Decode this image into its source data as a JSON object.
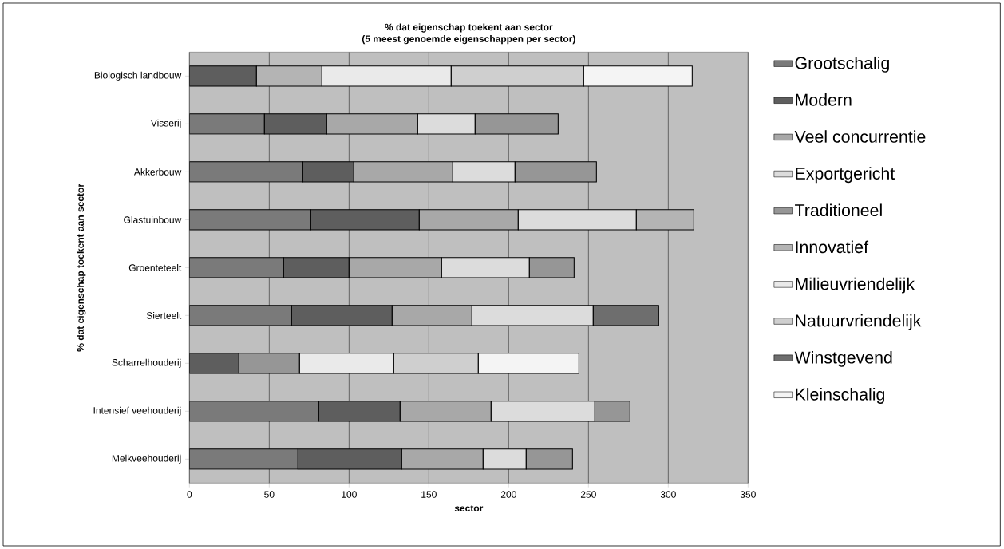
{
  "chart_data": {
    "type": "bar",
    "orientation": "horizontal",
    "stacked": true,
    "title": "% dat eigenschap toekent aan sector",
    "subtitle": "(5 meest genoemde eigenschappen per sector)",
    "xlabel": "sector",
    "ylabel": "% dat eigenschap toekent aan sector",
    "categories": [
      "Biologisch landbouw",
      "Visserij",
      "Akkerbouw",
      "Glastuinbouw",
      "Groenteteelt",
      "Sierteelt",
      "Scharrelhouderij",
      "Intensief veehouderij",
      "Melkveehouderij"
    ],
    "series": [
      {
        "name": "Grootschalig",
        "color": "#7a7a7a",
        "values": [
          null,
          47,
          71,
          76,
          59,
          64,
          null,
          81,
          68
        ]
      },
      {
        "name": "Modern",
        "color": "#5e5e5e",
        "values": [
          42,
          39,
          32,
          68,
          41,
          63,
          31,
          51,
          65
        ]
      },
      {
        "name": "Veel concurrentie",
        "color": "#a8a8a8",
        "values": [
          null,
          57,
          62,
          62,
          58,
          50,
          null,
          57,
          51
        ]
      },
      {
        "name": "Exportgericht",
        "color": "#dcdcdc",
        "values": [
          null,
          36,
          39,
          74,
          55,
          76,
          null,
          65,
          27
        ]
      },
      {
        "name": "Traditioneel",
        "color": "#969696",
        "values": [
          null,
          52,
          51,
          null,
          28,
          null,
          38,
          22,
          29
        ]
      },
      {
        "name": "Innovatief",
        "color": "#b4b4b4",
        "values": [
          41,
          null,
          null,
          36,
          null,
          null,
          null,
          null,
          null
        ]
      },
      {
        "name": "Milieuvriendelijk",
        "color": "#eaeaea",
        "values": [
          81,
          null,
          null,
          null,
          null,
          null,
          59,
          null,
          null
        ]
      },
      {
        "name": "Natuurvriendelijk",
        "color": "#cfcfcf",
        "values": [
          83,
          null,
          null,
          null,
          null,
          null,
          53,
          null,
          null
        ]
      },
      {
        "name": "Winstgevend",
        "color": "#6e6e6e",
        "values": [
          null,
          null,
          null,
          null,
          null,
          41,
          null,
          null,
          null
        ]
      },
      {
        "name": "Kleinschalig",
        "color": "#f4f4f4",
        "values": [
          68,
          null,
          null,
          null,
          null,
          null,
          63,
          null,
          null
        ]
      }
    ],
    "xlim": [
      0,
      350
    ],
    "xticks": [
      0,
      50,
      100,
      150,
      200,
      250,
      300,
      350
    ],
    "grid": "x",
    "legend": "right"
  }
}
